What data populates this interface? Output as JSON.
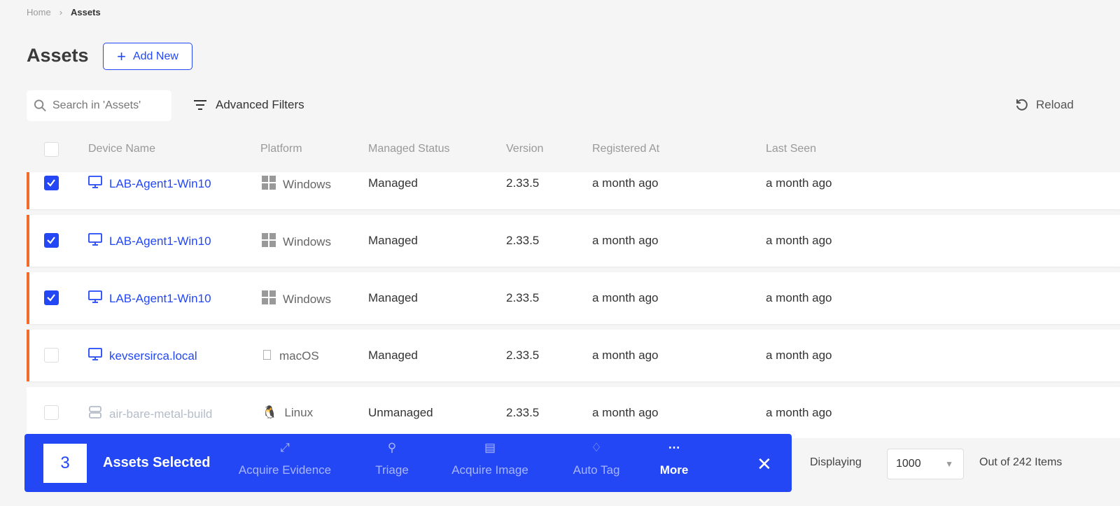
{
  "breadcrumb": {
    "home": "Home",
    "current": "Assets"
  },
  "page": {
    "title": "Assets",
    "add_new": "Add New"
  },
  "toolbar": {
    "search_placeholder": "Search in 'Assets'",
    "advanced_filters": "Advanced Filters",
    "reload": "Reload"
  },
  "table": {
    "columns": [
      "Device Name",
      "Platform",
      "Managed Status",
      "Version",
      "Registered At",
      "Last Seen"
    ],
    "rows": [
      {
        "checked": true,
        "name": "LAB-Agent1-Win10",
        "platform": "Windows",
        "status": "Managed",
        "version": "2.33.5",
        "registered": "a month ago",
        "last_seen": "a month ago",
        "alert": true,
        "icon": "monitor-icon",
        "platform_icon": "windows-icon"
      },
      {
        "checked": true,
        "name": "LAB-Agent1-Win10",
        "platform": "Windows",
        "status": "Managed",
        "version": "2.33.5",
        "registered": "a month ago",
        "last_seen": "a month ago",
        "alert": true,
        "icon": "monitor-icon",
        "platform_icon": "windows-icon"
      },
      {
        "checked": true,
        "name": "LAB-Agent1-Win10",
        "platform": "Windows",
        "status": "Managed",
        "version": "2.33.5",
        "registered": "a month ago",
        "last_seen": "a month ago",
        "alert": true,
        "icon": "monitor-icon",
        "platform_icon": "windows-icon"
      },
      {
        "checked": false,
        "name": "kevsersirca.local",
        "platform": "macOS",
        "status": "Managed",
        "version": "2.33.5",
        "registered": "a month ago",
        "last_seen": "a month ago",
        "alert": true,
        "icon": "monitor-icon",
        "platform_icon": "apple-icon"
      },
      {
        "checked": false,
        "name": "air-bare-metal-build",
        "platform": "Linux",
        "status": "Unmanaged",
        "version": "2.33.5",
        "registered": "a month ago",
        "last_seen": "a month ago",
        "alert": false,
        "icon": "server-icon",
        "platform_icon": "linux-icon"
      }
    ]
  },
  "selection_bar": {
    "count": "3",
    "label": "Assets Selected",
    "actions": [
      "Acquire Evidence",
      "Triage",
      "Acquire Image",
      "Auto Tag",
      "More"
    ]
  },
  "pagination": {
    "displaying": "Displaying",
    "page_size": "1000",
    "total": "Out of 242 Items"
  },
  "colors": {
    "accent": "#2347f5",
    "alert": "#f26b2a"
  }
}
